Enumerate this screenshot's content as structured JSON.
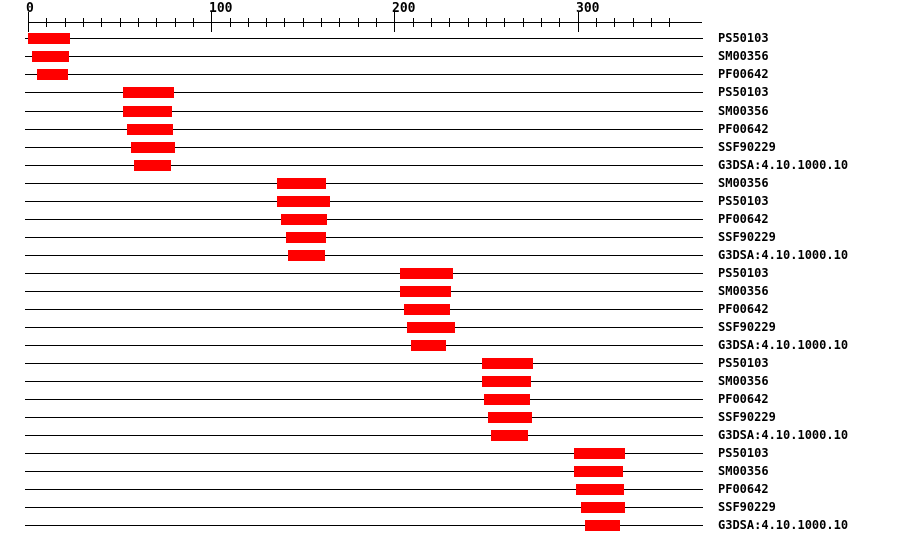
{
  "figure": {
    "background_color": "#ffffff",
    "line_color": "#000000",
    "text_color": "#000000",
    "bar_color": "#ff0000"
  },
  "chart_data": {
    "type": "domain-track",
    "description": "Protein signature match graphic: one horizontal track per signature match, red bar marks matched residue range on the sequence",
    "sequence_length": 368,
    "axis": {
      "start": 0,
      "end": 368,
      "minor_tick_step": 10,
      "major_tick_step": 100,
      "major_tick_labels": [
        "0",
        "100",
        "200",
        "300"
      ],
      "grid": false,
      "position": "top"
    },
    "legend": null,
    "rows": [
      {
        "label": "PS50103",
        "start": 1,
        "end": 23
      },
      {
        "label": "SM00356",
        "start": 3,
        "end": 22
      },
      {
        "label": "PF00642",
        "start": 6,
        "end": 22
      },
      {
        "label": "PS50103",
        "start": 53,
        "end": 80
      },
      {
        "label": "SM00356",
        "start": 53,
        "end": 79
      },
      {
        "label": "PF00642",
        "start": 55,
        "end": 79
      },
      {
        "label": "SSF90229",
        "start": 57,
        "end": 80
      },
      {
        "label": "G3DSA:4.10.1000.10",
        "start": 59,
        "end": 78
      },
      {
        "label": "SM00356",
        "start": 137,
        "end": 163
      },
      {
        "label": "PS50103",
        "start": 137,
        "end": 165
      },
      {
        "label": "PF00642",
        "start": 139,
        "end": 163
      },
      {
        "label": "SSF90229",
        "start": 142,
        "end": 163
      },
      {
        "label": "G3DSA:4.10.1000.10",
        "start": 143,
        "end": 162
      },
      {
        "label": "PS50103",
        "start": 204,
        "end": 232
      },
      {
        "label": "SM00356",
        "start": 204,
        "end": 231
      },
      {
        "label": "PF00642",
        "start": 206,
        "end": 230
      },
      {
        "label": "SSF90229",
        "start": 208,
        "end": 233
      },
      {
        "label": "G3DSA:4.10.1000.10",
        "start": 210,
        "end": 228
      },
      {
        "label": "PS50103",
        "start": 249,
        "end": 276
      },
      {
        "label": "SM00356",
        "start": 249,
        "end": 275
      },
      {
        "label": "PF00642",
        "start": 250,
        "end": 274
      },
      {
        "label": "SSF90229",
        "start": 252,
        "end": 275
      },
      {
        "label": "G3DSA:4.10.1000.10",
        "start": 254,
        "end": 273
      },
      {
        "label": "PS50103",
        "start": 299,
        "end": 326
      },
      {
        "label": "SM00356",
        "start": 299,
        "end": 325
      },
      {
        "label": "PF00642",
        "start": 300,
        "end": 325
      },
      {
        "label": "SSF90229",
        "start": 303,
        "end": 326
      },
      {
        "label": "G3DSA:4.10.1000.10",
        "start": 305,
        "end": 323
      }
    ]
  }
}
